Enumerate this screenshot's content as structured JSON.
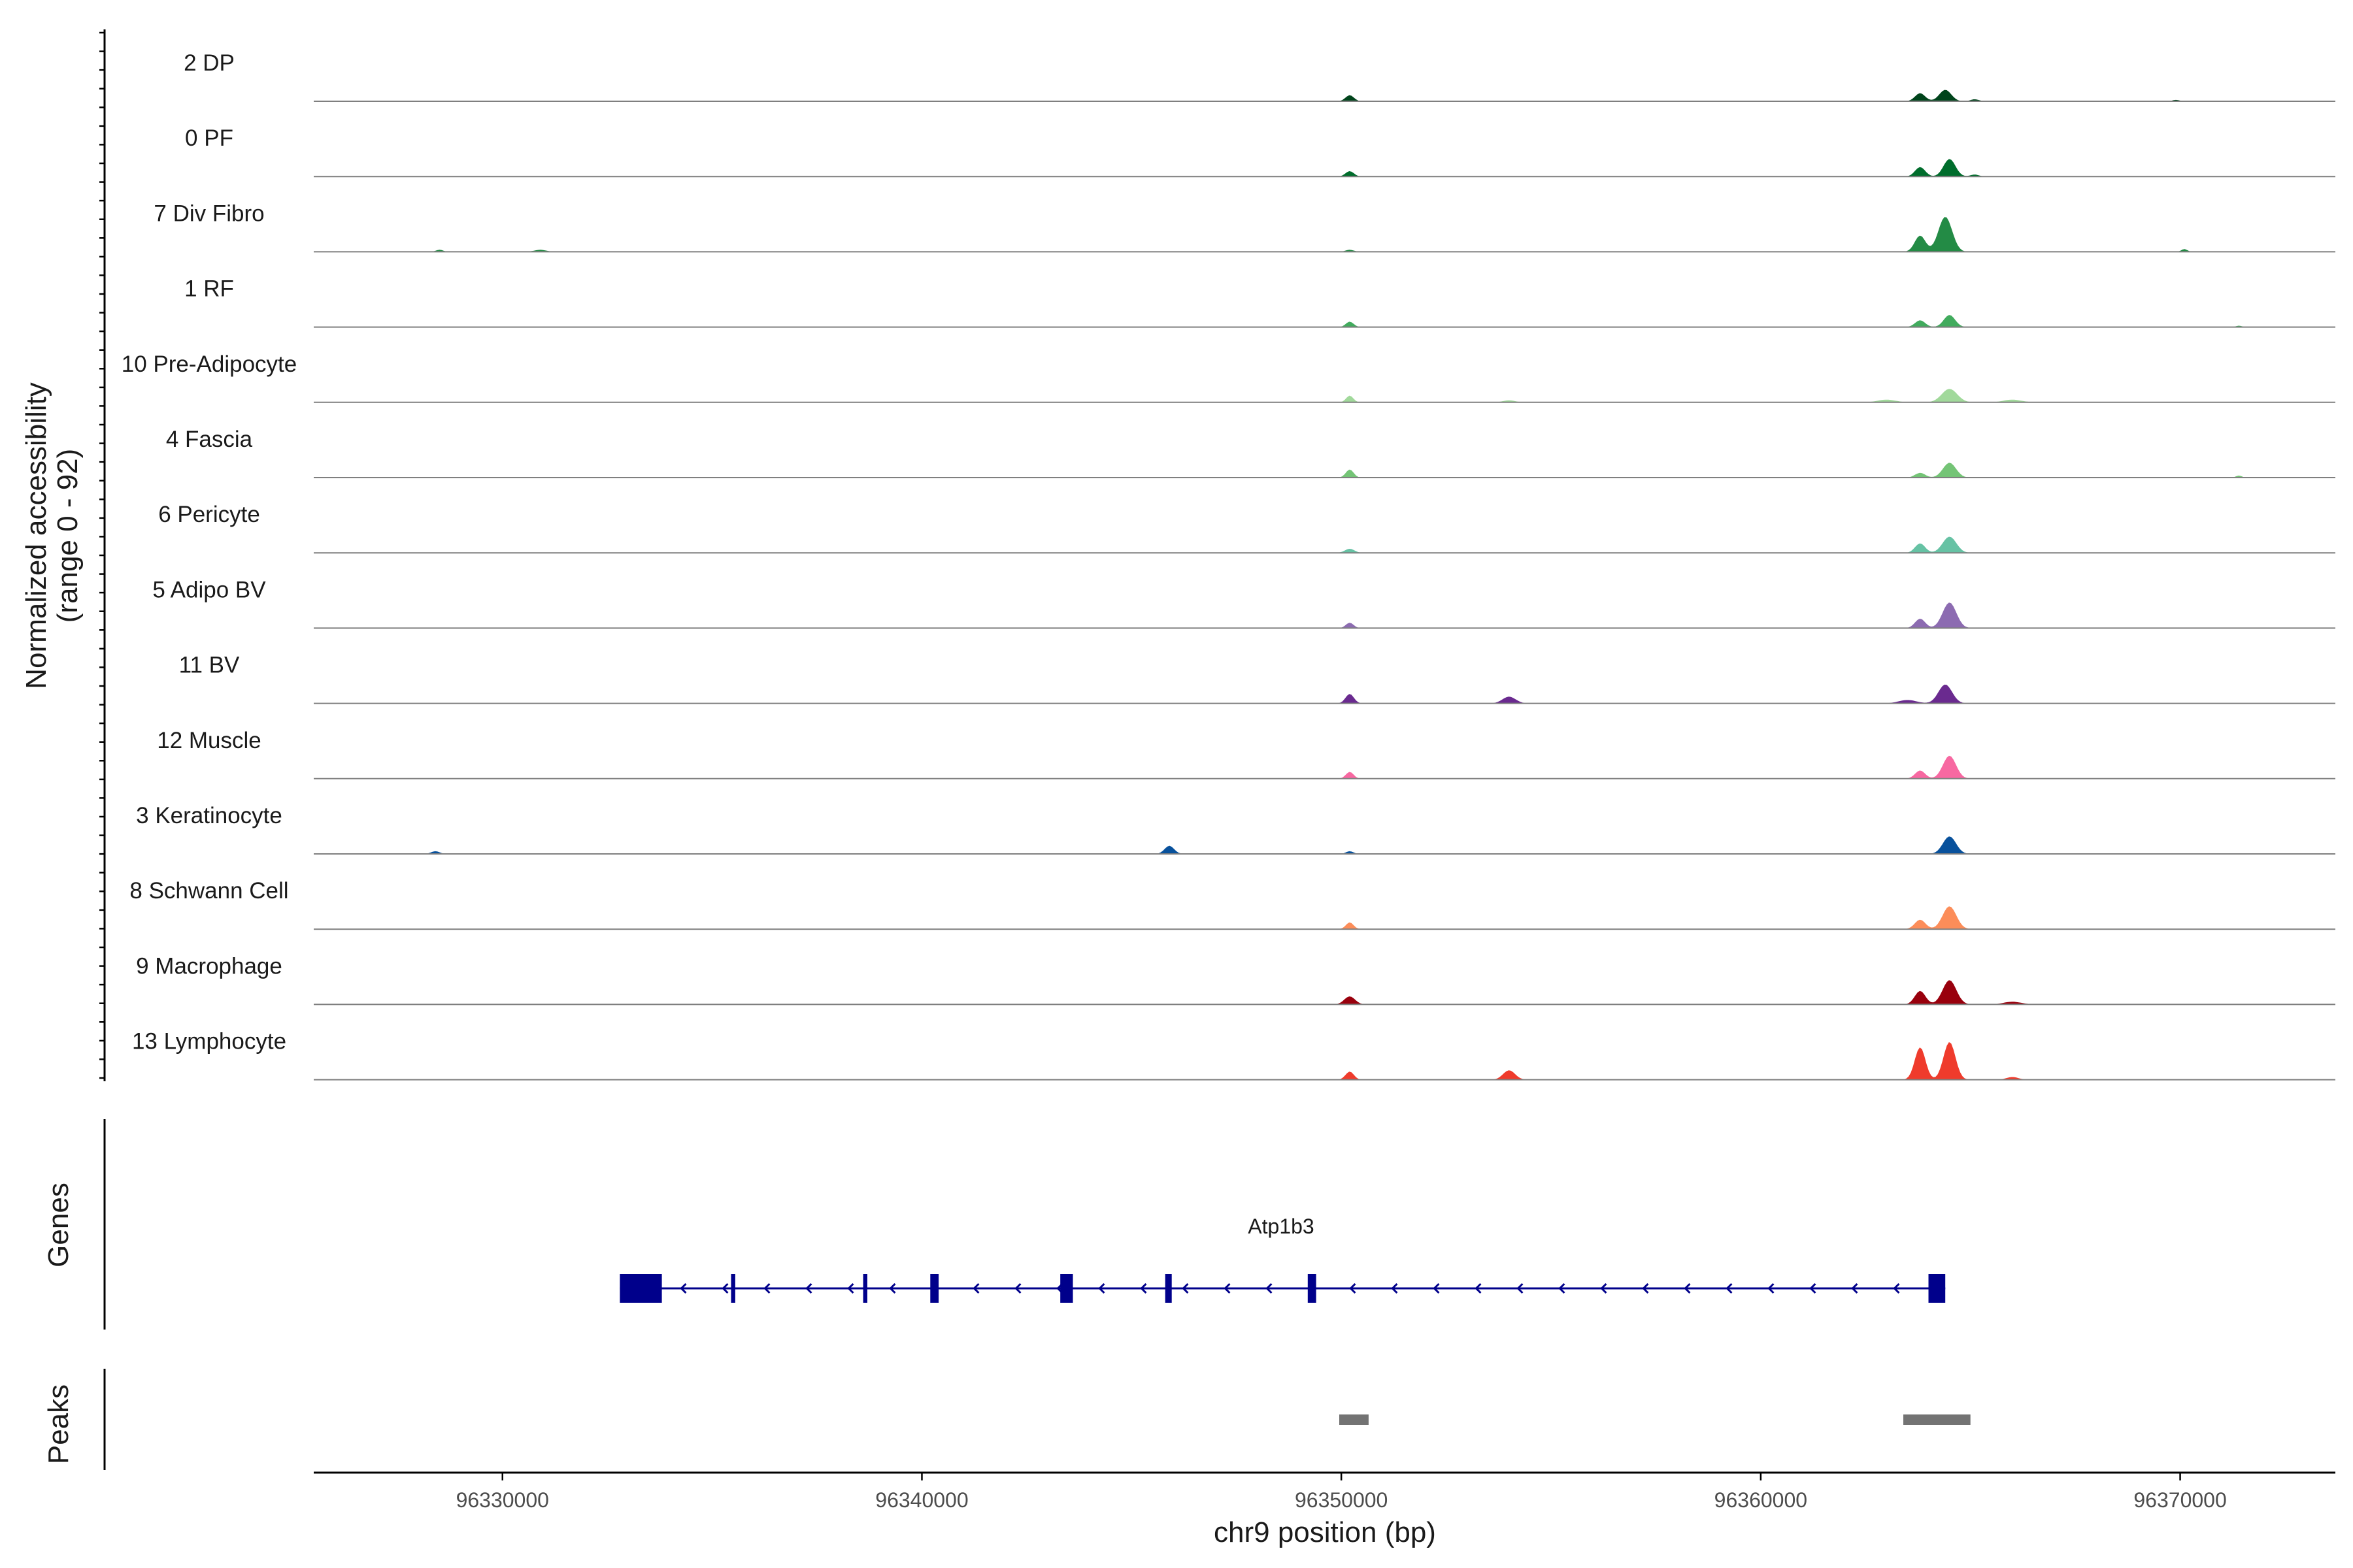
{
  "chart_data": {
    "type": "area",
    "title": "",
    "ylabel_line1": "Normalized accessibility",
    "ylabel_line2": "(range 0 - 92)",
    "y_range": [
      0,
      92
    ],
    "xlabel": "chr9 position (bp)",
    "xlim": [
      96325500,
      96373700
    ],
    "xticks": [
      96330000,
      96340000,
      96350000,
      96360000,
      96370000
    ],
    "xtick_labels": [
      "96330000",
      "96340000",
      "96350000",
      "96360000",
      "96370000"
    ],
    "tracks": [
      {
        "name": "2 DP",
        "color": "#00441b",
        "peaks": [
          [
            96350200,
            9,
            140
          ],
          [
            96363800,
            12,
            170
          ],
          [
            96364400,
            17,
            200
          ],
          [
            96365100,
            3,
            140
          ],
          [
            96369900,
            2,
            120
          ]
        ]
      },
      {
        "name": "0 PF",
        "color": "#006d2c",
        "peaks": [
          [
            96350200,
            8,
            140
          ],
          [
            96363800,
            14,
            170
          ],
          [
            96364500,
            26,
            200
          ],
          [
            96365100,
            3,
            140
          ]
        ]
      },
      {
        "name": "7 Div Fibro",
        "color": "#238b45",
        "peaks": [
          [
            96328500,
            3,
            120
          ],
          [
            96330900,
            3,
            200
          ],
          [
            96350200,
            3,
            140
          ],
          [
            96363800,
            24,
            180
          ],
          [
            96364400,
            52,
            230
          ],
          [
            96370100,
            4,
            100
          ]
        ]
      },
      {
        "name": "1 RF",
        "color": "#41ab5d",
        "peaks": [
          [
            96350200,
            8,
            130
          ],
          [
            96363800,
            10,
            170
          ],
          [
            96364500,
            18,
            190
          ],
          [
            96371400,
            2,
            100
          ]
        ]
      },
      {
        "name": "10 Pre-Adipocyte",
        "color": "#a1d99b",
        "peaks": [
          [
            96350200,
            10,
            120
          ],
          [
            96354000,
            3,
            200
          ],
          [
            96363000,
            4,
            300
          ],
          [
            96364500,
            20,
            260
          ],
          [
            96366000,
            4,
            300
          ]
        ]
      },
      {
        "name": "4 Fascia",
        "color": "#74c476",
        "peaks": [
          [
            96350200,
            12,
            130
          ],
          [
            96363800,
            7,
            170
          ],
          [
            96364500,
            22,
            220
          ],
          [
            96371400,
            3,
            100
          ]
        ]
      },
      {
        "name": "6 Pericyte",
        "color": "#66c2a4",
        "peaks": [
          [
            96350200,
            6,
            160
          ],
          [
            96363800,
            14,
            170
          ],
          [
            96364500,
            24,
            230
          ]
        ]
      },
      {
        "name": "5 Adipo BV",
        "color": "#8c6bb1",
        "peaks": [
          [
            96350200,
            8,
            130
          ],
          [
            96363800,
            14,
            170
          ],
          [
            96364500,
            38,
            230
          ]
        ]
      },
      {
        "name": "11 BV",
        "color": "#6a2a8f",
        "peaks": [
          [
            96350200,
            14,
            140
          ],
          [
            96354000,
            10,
            220
          ],
          [
            96364400,
            28,
            230
          ],
          [
            96363500,
            5,
            300
          ]
        ]
      },
      {
        "name": "12 Muscle",
        "color": "#f768a1",
        "peaks": [
          [
            96350200,
            10,
            130
          ],
          [
            96363800,
            12,
            170
          ],
          [
            96364500,
            34,
            220
          ]
        ]
      },
      {
        "name": "3 Keratinocyte",
        "color": "#08519c",
        "peaks": [
          [
            96328400,
            4,
            140
          ],
          [
            96345900,
            12,
            160
          ],
          [
            96350200,
            4,
            120
          ],
          [
            96364500,
            26,
            220
          ]
        ]
      },
      {
        "name": "8 Schwann Cell",
        "color": "#fc8d59",
        "peaks": [
          [
            96350200,
            10,
            130
          ],
          [
            96363800,
            14,
            180
          ],
          [
            96364500,
            34,
            230
          ]
        ]
      },
      {
        "name": "9 Macrophage",
        "color": "#99000d",
        "peaks": [
          [
            96350200,
            12,
            180
          ],
          [
            96363800,
            20,
            180
          ],
          [
            96364500,
            36,
            230
          ],
          [
            96366000,
            4,
            300
          ]
        ]
      },
      {
        "name": "13 Lymphocyte",
        "color": "#ef3b2c",
        "peaks": [
          [
            96350200,
            12,
            140
          ],
          [
            96354000,
            14,
            200
          ],
          [
            96363800,
            48,
            180
          ],
          [
            96364500,
            56,
            200
          ],
          [
            96366000,
            4,
            200
          ]
        ]
      }
    ],
    "genes": {
      "title": "Genes",
      "name": "Atp1b3",
      "strand": "-",
      "color": "#00008b",
      "start": 96332800,
      "end": 96364400,
      "exons": [
        [
          96332800,
          96333800,
          "utr"
        ],
        [
          96335450,
          96335550,
          "small"
        ],
        [
          96338600,
          96338700,
          "small"
        ],
        [
          96340200,
          96340400,
          "cds"
        ],
        [
          96343300,
          96343600,
          "cds"
        ],
        [
          96345800,
          96345950,
          "cds"
        ],
        [
          96349200,
          96349400,
          "cds"
        ],
        [
          96364000,
          96364400,
          "cds"
        ]
      ]
    },
    "peaks": {
      "title": "Peaks",
      "color": "#737373",
      "regions": [
        [
          96349950,
          96350650
        ],
        [
          96363400,
          96365000
        ]
      ]
    }
  }
}
